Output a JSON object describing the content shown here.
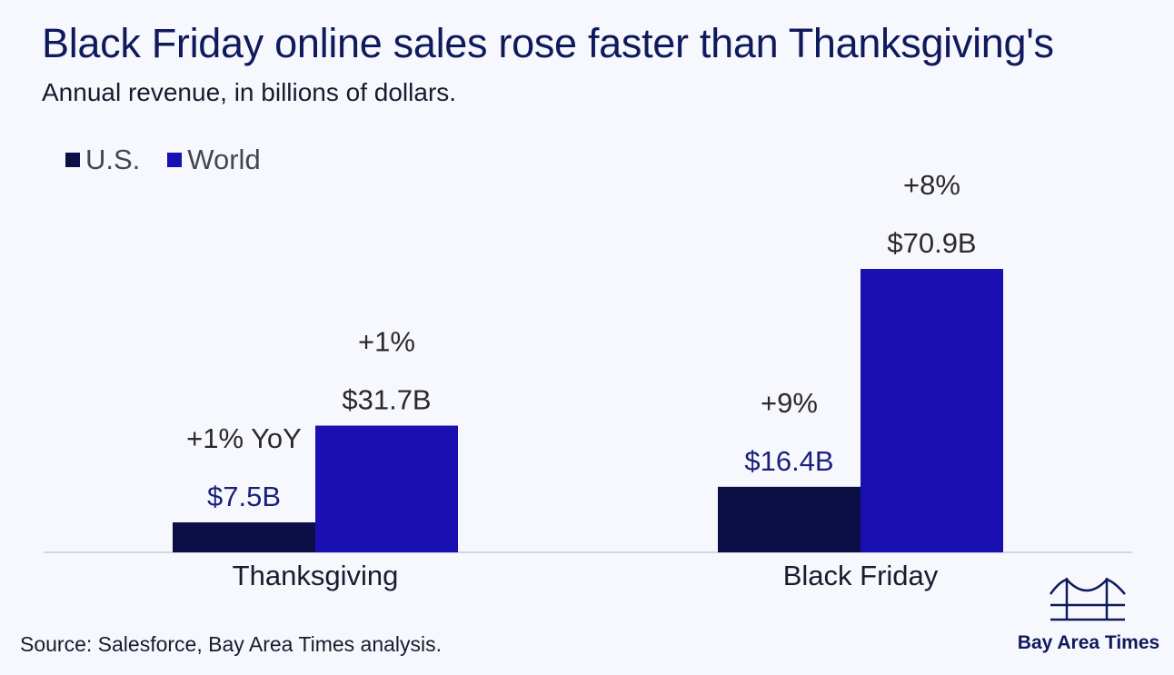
{
  "title": "Black Friday online sales rose faster than Thanksgiving's",
  "subtitle": "Annual revenue, in billions of dollars.",
  "source": "Source: Salesforce, Bay Area Times analysis.",
  "brand": {
    "name": "Bay Area Times",
    "logo_icon": "bridge-icon"
  },
  "colors": {
    "us": "#0b0f45",
    "world": "#1a0fb0",
    "baseline": "#c9cbd6",
    "label_us": "#1a1f7a",
    "label_world": "#2a2a2a"
  },
  "chart_data": {
    "type": "bar",
    "title": "Black Friday online sales rose faster than Thanksgiving's",
    "subtitle": "Annual revenue, in billions of dollars.",
    "categories": [
      "Thanksgiving",
      "Black Friday"
    ],
    "series": [
      {
        "name": "U.S.",
        "values": [
          7.5,
          16.4
        ],
        "value_labels": [
          "$7.5B",
          "$16.4B"
        ],
        "change_labels": [
          "+1% YoY",
          "+9%"
        ]
      },
      {
        "name": "World",
        "values": [
          31.7,
          70.9
        ],
        "value_labels": [
          "$31.7B",
          "$70.9B"
        ],
        "change_labels": [
          "+1%",
          "+8%"
        ]
      }
    ],
    "ylim": [
      0,
      70.9
    ],
    "grid": false,
    "legend": "top-left"
  }
}
